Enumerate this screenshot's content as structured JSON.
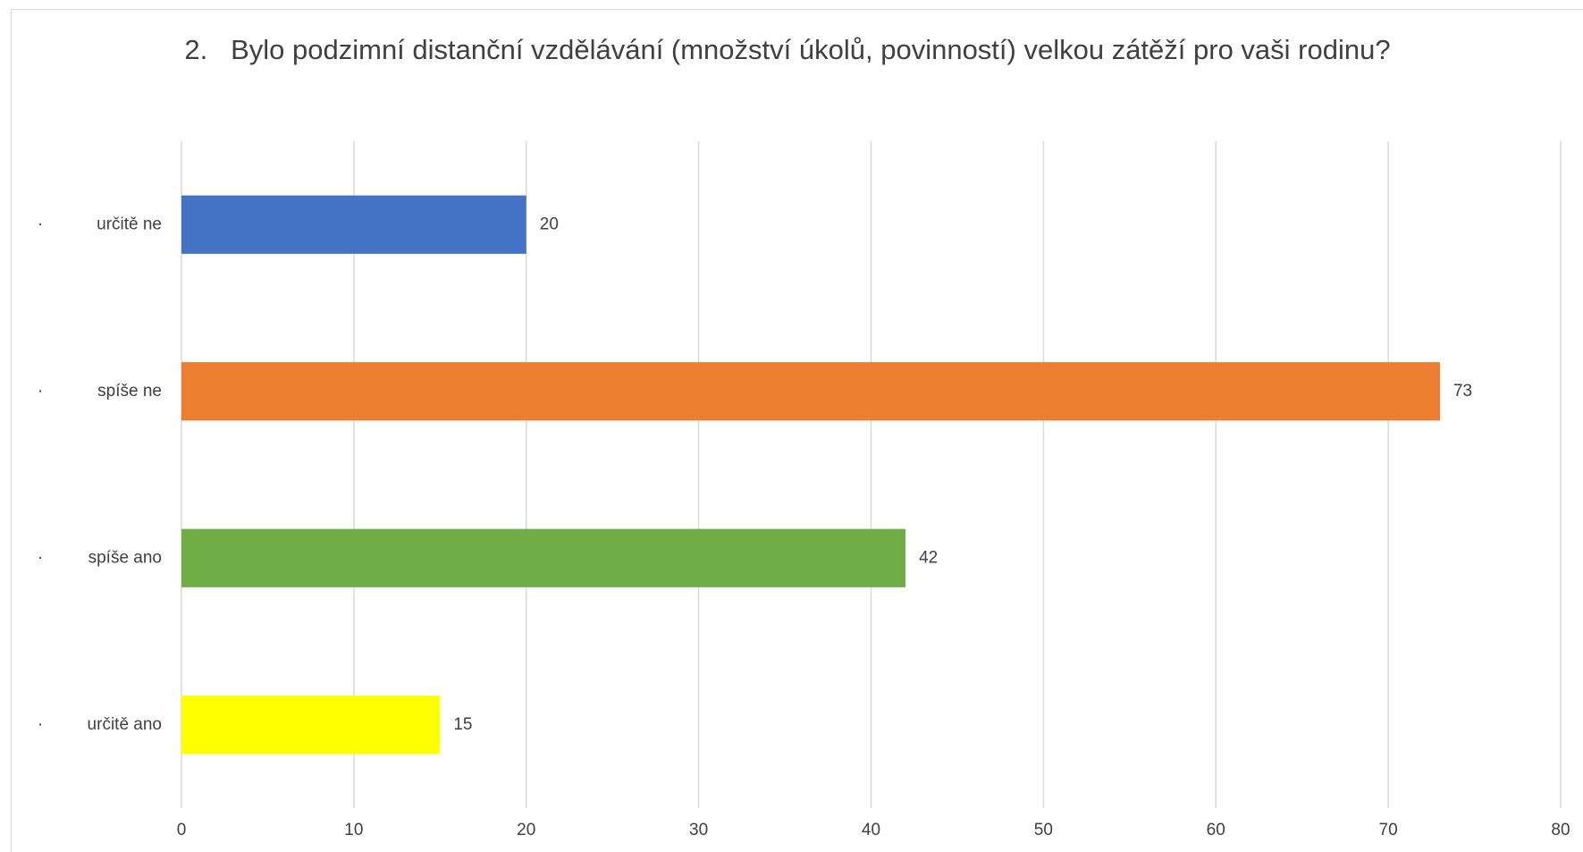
{
  "chart_data": {
    "type": "barh",
    "title": "2.\tBylo podzimní distanční vzdělávání (množství úkolů, povinností) velkou zátěží pro vaši rodinu?",
    "category_marker": "·",
    "categories": [
      "určitě ne",
      "spíše ne",
      "spíše ano",
      "určitě ano"
    ],
    "values": [
      20,
      73,
      42,
      15
    ],
    "colors": [
      "#4472c4",
      "#ed7d31",
      "#70ad47",
      "#ffff00"
    ],
    "xlim": [
      0,
      80
    ],
    "xticks": [
      0,
      10,
      20,
      30,
      40,
      50,
      60,
      70,
      80
    ],
    "grid": true
  }
}
